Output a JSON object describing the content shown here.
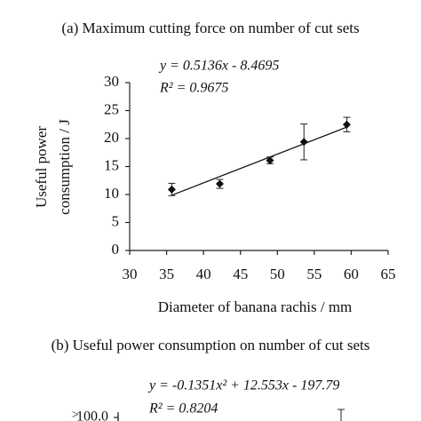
{
  "chart_data": [
    {
      "type": "scatter",
      "title": "(a) Maximum cutting force on number of cut sets",
      "ylabel": [
        "Useful power",
        "consumption / J"
      ],
      "xlabel": "Diameter of banana rachis / mm",
      "annotations": [
        "y = 0.5136x - 8.4695",
        "R² = 0.9675"
      ],
      "x": [
        35.7,
        42.2,
        49,
        53.6,
        59.4
      ],
      "values": [
        10.9,
        11.9,
        16.1,
        19.4,
        22.5
      ],
      "errors": [
        1.1,
        0.8,
        0.6,
        3.2,
        1.3
      ],
      "color": "#111111",
      "trendline": {
        "x": [
          35.7,
          59.4
        ],
        "values": [
          9.87,
          22.04
        ]
      },
      "xlim": [
        30,
        65
      ],
      "xticks": [
        30,
        35,
        40,
        45,
        50,
        55,
        60,
        65
      ],
      "ylim": [
        0,
        30
      ],
      "yticks": [
        0,
        5,
        10,
        15,
        20,
        25,
        30
      ]
    },
    {
      "type": "partial",
      "title": "(b) Useful power consumption on number of cut sets",
      "annotations": [
        "y = -0.1351x² + 12.553x - 197.79",
        "R² = 0.8204"
      ],
      "yticks": [
        {
          "value": 100,
          "label": "100.0"
        }
      ]
    }
  ]
}
